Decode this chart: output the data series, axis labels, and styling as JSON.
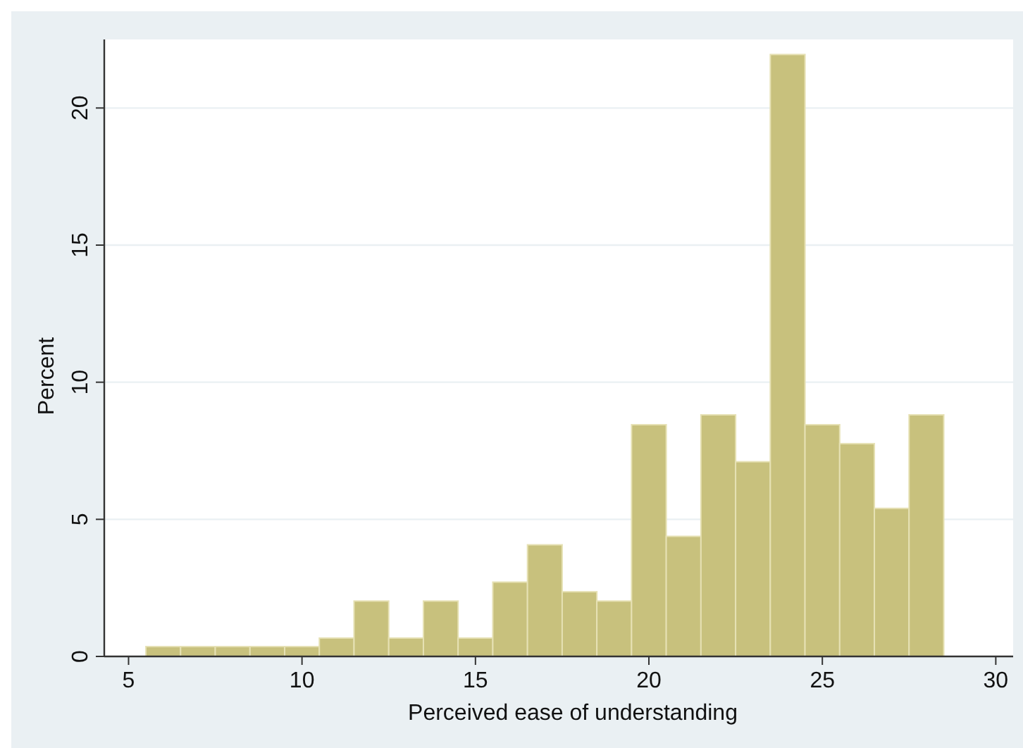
{
  "chart_data": {
    "type": "histogram",
    "xlabel": "Perceived ease of understanding",
    "ylabel": "Percent",
    "bins": [
      5.5,
      6.5,
      7.5,
      8.5,
      9.5,
      10.5,
      11.5,
      12.5,
      13.5,
      14.5,
      15.5,
      16.5,
      17.5,
      18.5,
      19.5,
      20.5,
      21.5,
      22.5,
      23.5,
      24.5,
      25.5,
      26.5,
      27.5,
      28.5
    ],
    "values": [
      0.36,
      0.36,
      0.36,
      0.36,
      0.36,
      0.67,
      2.02,
      0.67,
      2.02,
      0.67,
      2.71,
      4.07,
      2.36,
      2.02,
      8.45,
      4.38,
      8.81,
      7.1,
      21.95,
      8.45,
      7.76,
      5.4,
      8.81
    ],
    "color": "#c8c17d",
    "xlim": [
      4.3,
      30.5
    ],
    "xticks": [
      5,
      10,
      15,
      20,
      25,
      30
    ],
    "ylim": [
      0,
      22.5
    ],
    "yticks": [
      0,
      5,
      10,
      15,
      20
    ],
    "grid": "y"
  }
}
